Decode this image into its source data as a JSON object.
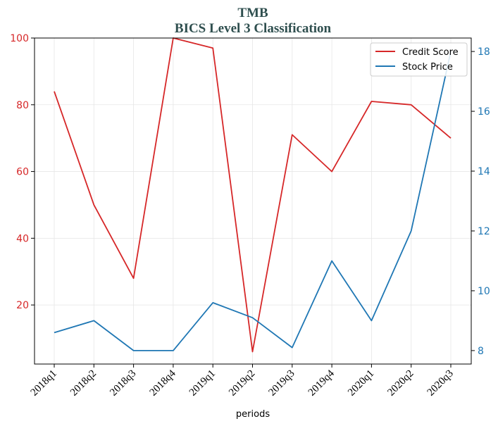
{
  "chart_data": {
    "type": "line",
    "title": "TMB",
    "subtitle": "BICS Level 3 Classification",
    "xlabel": "periods",
    "categories": [
      "2018q1",
      "2018q2",
      "2018q3",
      "2018q4",
      "2019q1",
      "2019q2",
      "2019q3",
      "2019q4",
      "2020q1",
      "2020q2",
      "2020q3"
    ],
    "series": [
      {
        "name": "Credit Score",
        "axis": "left",
        "color": "#d62728",
        "values": [
          84,
          50,
          28,
          100,
          97,
          6,
          71,
          60,
          81,
          80,
          70
        ]
      },
      {
        "name": "Stock Price",
        "axis": "right",
        "color": "#1f77b4",
        "values": [
          8.6,
          9.0,
          8.0,
          8.0,
          9.6,
          9.1,
          8.1,
          11.0,
          9.0,
          12.0,
          18.0
        ]
      }
    ],
    "left_axis": {
      "ylim": [
        2.3,
        100
      ],
      "ticks": [
        20,
        40,
        60,
        80,
        100
      ],
      "color": "#d62728"
    },
    "right_axis": {
      "ylim": [
        7.55,
        18.45
      ],
      "ticks": [
        8,
        10,
        12,
        14,
        16,
        18
      ],
      "color": "#1f77b4"
    },
    "grid": true,
    "legend_position": "top-right",
    "title_color": "#2f4f4f"
  }
}
